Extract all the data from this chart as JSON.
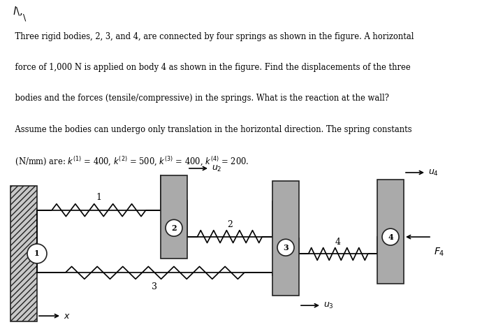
{
  "bg_color": "#ffffff",
  "body_color": "#aaaaaa",
  "body_ec": "#222222",
  "wall_hatch": "////",
  "lw": 1.2,
  "fig_width": 7.0,
  "fig_height": 4.78,
  "dpi": 100,
  "problem_text_lines": [
    "    Three rigid bodies, 2, 3, and 4, are connected by four springs as shown in the figure. A horizontal",
    "    force of 1,000 N is applied on body 4 as shown in the figure. Find the displacements of the three",
    "    bodies and the forces (tensile/compressive) in the springs. What is the reaction at the wall?",
    "    Assume the bodies can undergo only translation in the horizontal direction. The spring constants",
    "    (N/mm) are: k(1) = 400, k(2) = 500, k(3) = 400, k(4) = 200."
  ]
}
